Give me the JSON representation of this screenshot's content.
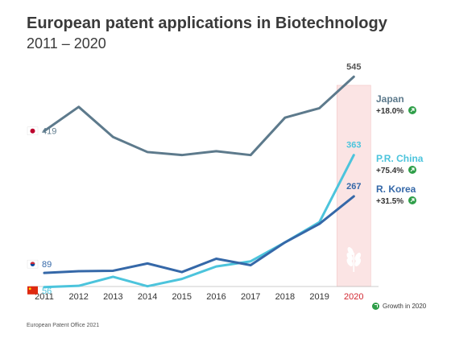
{
  "title": "European patent applications in Biotechnology",
  "subtitle": "2011 – 2020",
  "source": "European Patent Office 2021",
  "growth_legend": "Growth in 2020",
  "colors": {
    "japan": "#5d7a8c",
    "china": "#4cc4dc",
    "korea": "#3568a8",
    "highlight": "#fbe4e4",
    "growth": "#2e9e48",
    "highlight_year": "#d22630"
  },
  "chart_data": {
    "type": "line",
    "x": [
      2011,
      2012,
      2013,
      2014,
      2015,
      2016,
      2017,
      2018,
      2019,
      2020
    ],
    "ylim": [
      35,
      600
    ],
    "highlight_x": 2020,
    "series": [
      {
        "name": "Japan",
        "key": "japan",
        "values": [
          419,
          475,
          405,
          370,
          363,
          372,
          363,
          450,
          472,
          545
        ],
        "start_label": "419",
        "end_label": "545",
        "growth": "+18.0%",
        "flag": "japan-flag-icon"
      },
      {
        "name": "P.R. China",
        "key": "china",
        "values": [
          56,
          59,
          80,
          58,
          75,
          104,
          116,
          160,
          207,
          363
        ],
        "start_label": "56",
        "end_label": "363",
        "growth": "+75.4%",
        "flag": "china-flag-icon"
      },
      {
        "name": "R. Korea",
        "key": "korea",
        "values": [
          89,
          93,
          94,
          111,
          91,
          122,
          107,
          160,
          203,
          267
        ],
        "start_label": "89",
        "end_label": "267",
        "growth": "+31.5%",
        "flag": "korea-flag-icon"
      }
    ]
  }
}
